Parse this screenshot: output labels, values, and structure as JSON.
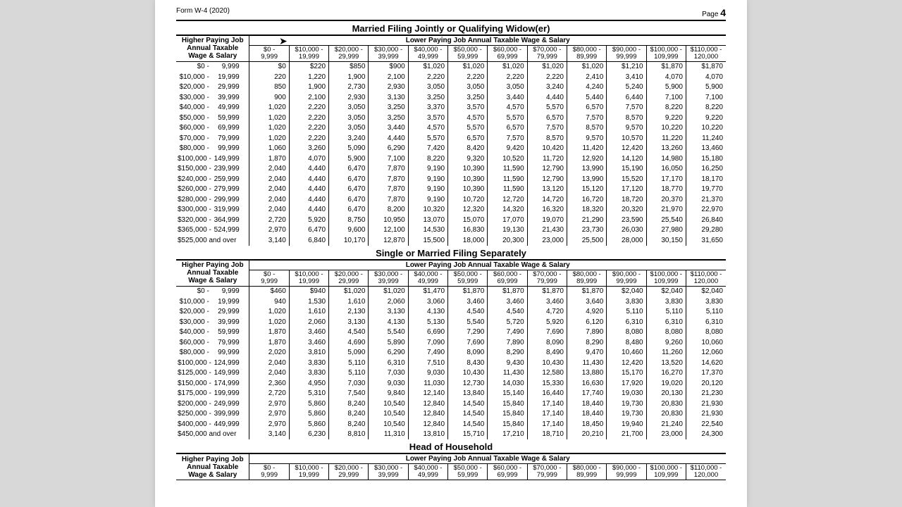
{
  "form_name": "Form W-4 (2020)",
  "page_label": "Page",
  "page_number": "4",
  "lower_header": "Lower Paying Job Annual Taxable Wage & Salary",
  "higher_header_l1": "Higher Paying Job",
  "higher_header_l2": "Annual Taxable",
  "higher_header_l3": "Wage & Salary",
  "col_ranges": [
    "$0 - 9,999",
    "$10,000 - 19,999",
    "$20,000 - 29,999",
    "$30,000 - 39,999",
    "$40,000 - 49,999",
    "$50,000 - 59,999",
    "$60,000 - 69,999",
    "$70,000 - 79,999",
    "$80,000 - 89,999",
    "$90,000 - 99,999",
    "$100,000 - 109,999",
    "$110,000 - 120,000"
  ],
  "sections": [
    {
      "title": "Married Filing Jointly or Qualifying Widow(er)",
      "rows": [
        {
          "label": "$0 -   9,999",
          "v": [
            "$0",
            "$220",
            "$850",
            "$900",
            "$1,020",
            "$1,020",
            "$1,020",
            "$1,020",
            "$1,020",
            "$1,210",
            "$1,870",
            "$1,870"
          ]
        },
        {
          "label": "$10,000 -  19,999",
          "v": [
            "220",
            "1,220",
            "1,900",
            "2,100",
            "2,220",
            "2,220",
            "2,220",
            "2,220",
            "2,410",
            "3,410",
            "4,070",
            "4,070"
          ]
        },
        {
          "label": "$20,000 -  29,999",
          "v": [
            "850",
            "1,900",
            "2,730",
            "2,930",
            "3,050",
            "3,050",
            "3,050",
            "3,240",
            "4,240",
            "5,240",
            "5,900",
            "5,900"
          ]
        },
        {
          "label": "$30,000 -  39,999",
          "v": [
            "900",
            "2,100",
            "2,930",
            "3,130",
            "3,250",
            "3,250",
            "3,440",
            "4,440",
            "5,440",
            "6,440",
            "7,100",
            "7,100"
          ]
        },
        {
          "label": "$40,000 -  49,999",
          "v": [
            "1,020",
            "2,220",
            "3,050",
            "3,250",
            "3,370",
            "3,570",
            "4,570",
            "5,570",
            "6,570",
            "7,570",
            "8,220",
            "8,220"
          ]
        },
        {
          "label": "$50,000 -  59,999",
          "v": [
            "1,020",
            "2,220",
            "3,050",
            "3,250",
            "3,570",
            "4,570",
            "5,570",
            "6,570",
            "7,570",
            "8,570",
            "9,220",
            "9,220"
          ]
        },
        {
          "label": "$60,000 -  69,999",
          "v": [
            "1,020",
            "2,220",
            "3,050",
            "3,440",
            "4,570",
            "5,570",
            "6,570",
            "7,570",
            "8,570",
            "9,570",
            "10,220",
            "10,220"
          ]
        },
        {
          "label": "$70,000 -  79,999",
          "v": [
            "1,020",
            "2,220",
            "3,240",
            "4,440",
            "5,570",
            "6,570",
            "7,570",
            "8,570",
            "9,570",
            "10,570",
            "11,220",
            "11,240"
          ]
        },
        {
          "label": "$80,000 -  99,999",
          "v": [
            "1,060",
            "3,260",
            "5,090",
            "6,290",
            "7,420",
            "8,420",
            "9,420",
            "10,420",
            "11,420",
            "12,420",
            "13,260",
            "13,460"
          ]
        },
        {
          "label": "$100,000 - 149,999",
          "v": [
            "1,870",
            "4,070",
            "5,900",
            "7,100",
            "8,220",
            "9,320",
            "10,520",
            "11,720",
            "12,920",
            "14,120",
            "14,980",
            "15,180"
          ]
        },
        {
          "label": "$150,000 - 239,999",
          "v": [
            "2,040",
            "4,440",
            "6,470",
            "7,870",
            "9,190",
            "10,390",
            "11,590",
            "12,790",
            "13,990",
            "15,190",
            "16,050",
            "16,250"
          ]
        },
        {
          "label": "$240,000 - 259,999",
          "v": [
            "2,040",
            "4,440",
            "6,470",
            "7,870",
            "9,190",
            "10,390",
            "11,590",
            "12,790",
            "13,990",
            "15,520",
            "17,170",
            "18,170"
          ]
        },
        {
          "label": "$260,000 - 279,999",
          "v": [
            "2,040",
            "4,440",
            "6,470",
            "7,870",
            "9,190",
            "10,390",
            "11,590",
            "13,120",
            "15,120",
            "17,120",
            "18,770",
            "19,770"
          ]
        },
        {
          "label": "$280,000 - 299,999",
          "v": [
            "2,040",
            "4,440",
            "6,470",
            "7,870",
            "9,190",
            "10,720",
            "12,720",
            "14,720",
            "16,720",
            "18,720",
            "20,370",
            "21,370"
          ]
        },
        {
          "label": "$300,000 - 319,999",
          "v": [
            "2,040",
            "4,440",
            "6,470",
            "8,200",
            "10,320",
            "12,320",
            "14,320",
            "16,320",
            "18,320",
            "20,320",
            "21,970",
            "22,970"
          ]
        },
        {
          "label": "$320,000 - 364,999",
          "v": [
            "2,720",
            "5,920",
            "8,750",
            "10,950",
            "13,070",
            "15,070",
            "17,070",
            "19,070",
            "21,290",
            "23,590",
            "25,540",
            "26,840"
          ]
        },
        {
          "label": "$365,000 - 524,999",
          "v": [
            "2,970",
            "6,470",
            "9,600",
            "12,100",
            "14,530",
            "16,830",
            "19,130",
            "21,430",
            "23,730",
            "26,030",
            "27,980",
            "29,280"
          ]
        },
        {
          "label": "$525,000 and over",
          "v": [
            "3,140",
            "6,840",
            "10,170",
            "12,870",
            "15,500",
            "18,000",
            "20,300",
            "23,000",
            "25,500",
            "28,000",
            "30,150",
            "31,650"
          ]
        }
      ]
    },
    {
      "title": "Single or Married Filing Separately",
      "rows": [
        {
          "label": "$0 -   9,999",
          "v": [
            "$460",
            "$940",
            "$1,020",
            "$1,020",
            "$1,470",
            "$1,870",
            "$1,870",
            "$1,870",
            "$1,870",
            "$2,040",
            "$2,040",
            "$2,040"
          ]
        },
        {
          "label": "$10,000 -  19,999",
          "v": [
            "940",
            "1,530",
            "1,610",
            "2,060",
            "3,060",
            "3,460",
            "3,460",
            "3,460",
            "3,640",
            "3,830",
            "3,830",
            "3,830"
          ]
        },
        {
          "label": "$20,000 -  29,999",
          "v": [
            "1,020",
            "1,610",
            "2,130",
            "3,130",
            "4,130",
            "4,540",
            "4,540",
            "4,720",
            "4,920",
            "5,110",
            "5,110",
            "5,110"
          ]
        },
        {
          "label": "$30,000 -  39,999",
          "v": [
            "1,020",
            "2,060",
            "3,130",
            "4,130",
            "5,130",
            "5,540",
            "5,720",
            "5,920",
            "6,120",
            "6,310",
            "6,310",
            "6,310"
          ]
        },
        {
          "label": "$40,000 -  59,999",
          "v": [
            "1,870",
            "3,460",
            "4,540",
            "5,540",
            "6,690",
            "7,290",
            "7,490",
            "7,690",
            "7,890",
            "8,080",
            "8,080",
            "8,080"
          ]
        },
        {
          "label": "$60,000 -  79,999",
          "v": [
            "1,870",
            "3,460",
            "4,690",
            "5,890",
            "7,090",
            "7,690",
            "7,890",
            "8,090",
            "8,290",
            "8,480",
            "9,260",
            "10,060"
          ]
        },
        {
          "label": "$80,000 -  99,999",
          "v": [
            "2,020",
            "3,810",
            "5,090",
            "6,290",
            "7,490",
            "8,090",
            "8,290",
            "8,490",
            "9,470",
            "10,460",
            "11,260",
            "12,060"
          ]
        },
        {
          "label": "$100,000 - 124,999",
          "v": [
            "2,040",
            "3,830",
            "5,110",
            "6,310",
            "7,510",
            "8,430",
            "9,430",
            "10,430",
            "11,430",
            "12,420",
            "13,520",
            "14,620"
          ]
        },
        {
          "label": "$125,000 - 149,999",
          "v": [
            "2,040",
            "3,830",
            "5,110",
            "7,030",
            "9,030",
            "10,430",
            "11,430",
            "12,580",
            "13,880",
            "15,170",
            "16,270",
            "17,370"
          ]
        },
        {
          "label": "$150,000 - 174,999",
          "v": [
            "2,360",
            "4,950",
            "7,030",
            "9,030",
            "11,030",
            "12,730",
            "14,030",
            "15,330",
            "16,630",
            "17,920",
            "19,020",
            "20,120"
          ]
        },
        {
          "label": "$175,000 - 199,999",
          "v": [
            "2,720",
            "5,310",
            "7,540",
            "9,840",
            "12,140",
            "13,840",
            "15,140",
            "16,440",
            "17,740",
            "19,030",
            "20,130",
            "21,230"
          ]
        },
        {
          "label": "$200,000 - 249,999",
          "v": [
            "2,970",
            "5,860",
            "8,240",
            "10,540",
            "12,840",
            "14,540",
            "15,840",
            "17,140",
            "18,440",
            "19,730",
            "20,830",
            "21,930"
          ]
        },
        {
          "label": "$250,000 - 399,999",
          "v": [
            "2,970",
            "5,860",
            "8,240",
            "10,540",
            "12,840",
            "14,540",
            "15,840",
            "17,140",
            "18,440",
            "19,730",
            "20,830",
            "21,930"
          ]
        },
        {
          "label": "$400,000 - 449,999",
          "v": [
            "2,970",
            "5,860",
            "8,240",
            "10,540",
            "12,840",
            "14,540",
            "15,840",
            "17,140",
            "18,450",
            "19,940",
            "21,240",
            "22,540"
          ]
        },
        {
          "label": "$450,000 and over",
          "v": [
            "3,140",
            "6,230",
            "8,810",
            "11,310",
            "13,810",
            "15,710",
            "17,210",
            "18,710",
            "20,210",
            "21,700",
            "23,000",
            "24,300"
          ]
        }
      ]
    },
    {
      "title": "Head of Household",
      "rows": []
    }
  ]
}
